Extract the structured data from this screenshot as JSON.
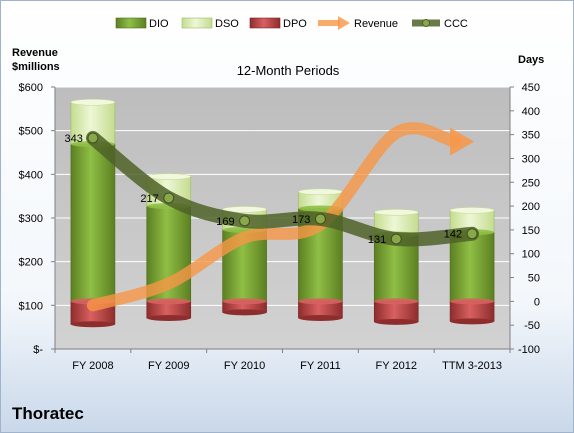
{
  "footer": {
    "company": "Thoratec"
  },
  "colors": {
    "dio": "#77a131",
    "dio_light": "#a9cc5e",
    "dso": "#d5e7a8",
    "dso_light": "#f2f8df",
    "dpo": "#b84a4a",
    "dpo_light": "#e07b7b",
    "revenue": "#f79646",
    "ccc": "#4f6228",
    "plot_bg": "#c7c7c7",
    "grid": "#ffffff"
  },
  "chart_data": {
    "type": "bar",
    "title": "12-Month Periods",
    "left_axis": {
      "label_line1": "Revenue",
      "label_line2": "$millions",
      "ticks": [
        "$-",
        "$100",
        "$200",
        "$300",
        "$400",
        "$500",
        "$600"
      ],
      "ylim": [
        0,
        600
      ]
    },
    "right_axis": {
      "label": "Days",
      "ticks": [
        "-100",
        "-50",
        "0",
        "50",
        "100",
        "150",
        "200",
        "250",
        "300",
        "350",
        "400",
        "450"
      ],
      "ylim": [
        -100,
        450
      ]
    },
    "categories": [
      "FY 2008",
      "FY 2009",
      "FY 2010",
      "FY 2011",
      "FY 2012",
      "TTM 3-2013"
    ],
    "legend": {
      "position": "top",
      "entries": [
        "DIO",
        "DSO",
        "DPO",
        "Revenue",
        "CCC"
      ]
    },
    "series": [
      {
        "name": "DIO",
        "axis": "right",
        "kind": "stacked-bar",
        "values": [
          330,
          200,
          150,
          195,
          140,
          145
        ]
      },
      {
        "name": "DSO",
        "axis": "right",
        "kind": "stacked-bar",
        "values": [
          88,
          62,
          43,
          35,
          47,
          46
        ]
      },
      {
        "name": "DPO",
        "axis": "right",
        "kind": "negative-bar",
        "values": [
          -48,
          -35,
          -23,
          -35,
          -43,
          -42
        ]
      },
      {
        "name": "Revenue",
        "axis": "left",
        "kind": "arrow-line",
        "values": [
          100,
          150,
          255,
          285,
          495,
          475
        ]
      },
      {
        "name": "CCC",
        "axis": "right",
        "kind": "line",
        "values": [
          343,
          217,
          169,
          173,
          131,
          142
        ]
      }
    ],
    "ccc_labels": [
      "343",
      "217",
      "169",
      "173",
      "131",
      "142"
    ]
  }
}
